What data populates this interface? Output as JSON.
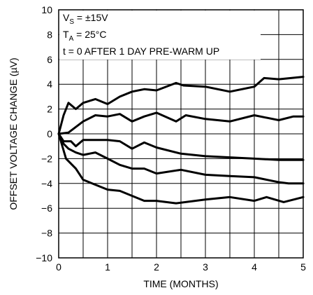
{
  "chart_data": {
    "type": "line",
    "xlabel": "TIME (MONTHS)",
    "ylabel": "OFFSET VOLTAGE CHANGE (µV)",
    "xlim": [
      0,
      5
    ],
    "ylim": [
      -10,
      10
    ],
    "x_ticks": [
      0,
      1,
      2,
      3,
      4,
      5
    ],
    "y_ticks": [
      -10,
      -8,
      -6,
      -4,
      -2,
      0,
      2,
      4,
      6,
      8,
      10
    ],
    "x_minor_step": 0.5,
    "grid": true,
    "annotations": {
      "vs": {
        "main": "V",
        "sub": "S",
        "rest": " = ±15V"
      },
      "ta": {
        "main": "T",
        "sub": "A",
        "rest": " = 25°C"
      },
      "t0": "t = 0 AFTER 1 DAY PRE-WARM UP"
    },
    "series": [
      {
        "x": [
          0,
          0.1,
          0.2,
          0.35,
          0.5,
          0.75,
          1.0,
          1.25,
          1.5,
          1.75,
          2.0,
          2.4,
          2.55,
          3.0,
          3.5,
          4.0,
          4.2,
          4.5,
          5.0
        ],
        "y": [
          0,
          1.5,
          2.5,
          2.0,
          2.5,
          2.8,
          2.4,
          3.0,
          3.4,
          3.6,
          3.5,
          4.1,
          3.9,
          3.8,
          3.4,
          3.8,
          4.5,
          4.4,
          4.6
        ]
      },
      {
        "x": [
          0,
          0.2,
          0.5,
          0.75,
          1.0,
          1.25,
          1.5,
          1.75,
          2.0,
          2.4,
          2.6,
          3.0,
          3.5,
          4.0,
          4.5,
          4.8,
          5.0
        ],
        "y": [
          0,
          0.1,
          1.0,
          1.5,
          1.4,
          1.6,
          1.0,
          1.4,
          1.7,
          1.0,
          1.5,
          1.2,
          1.0,
          1.5,
          1.1,
          1.4,
          1.4
        ]
      },
      {
        "x": [
          0,
          0.1,
          0.25,
          0.35,
          0.5,
          0.75,
          1.0,
          1.25,
          1.5,
          1.75,
          2.0,
          2.5,
          3.0,
          3.5,
          4.0,
          4.5,
          5.0
        ],
        "y": [
          0,
          -0.6,
          -0.6,
          -1.0,
          -0.5,
          -0.5,
          -0.5,
          -0.6,
          -1.2,
          -0.7,
          -1.1,
          -1.6,
          -1.8,
          -1.9,
          -2.0,
          -2.1,
          -2.1
        ]
      },
      {
        "x": [
          0,
          0.1,
          0.2,
          0.35,
          0.5,
          0.75,
          1.0,
          1.25,
          1.5,
          1.75,
          2.0,
          2.5,
          3.0,
          3.5,
          4.0,
          4.5,
          4.7,
          5.0
        ],
        "y": [
          0,
          -0.8,
          -1.2,
          -1.5,
          -1.7,
          -1.5,
          -2.0,
          -2.5,
          -2.8,
          -2.8,
          -3.2,
          -2.9,
          -3.3,
          -3.4,
          -3.5,
          -3.9,
          -4.0,
          -4.0
        ]
      },
      {
        "x": [
          0,
          0.15,
          0.35,
          0.5,
          0.75,
          1.0,
          1.25,
          1.5,
          1.75,
          2.0,
          2.4,
          3.0,
          3.5,
          4.0,
          4.25,
          4.6,
          5.0
        ],
        "y": [
          0,
          -2.0,
          -2.8,
          -3.7,
          -4.1,
          -4.5,
          -4.6,
          -5.0,
          -5.4,
          -5.4,
          -5.6,
          -5.3,
          -5.1,
          -5.4,
          -5.1,
          -5.5,
          -5.1
        ]
      }
    ]
  }
}
